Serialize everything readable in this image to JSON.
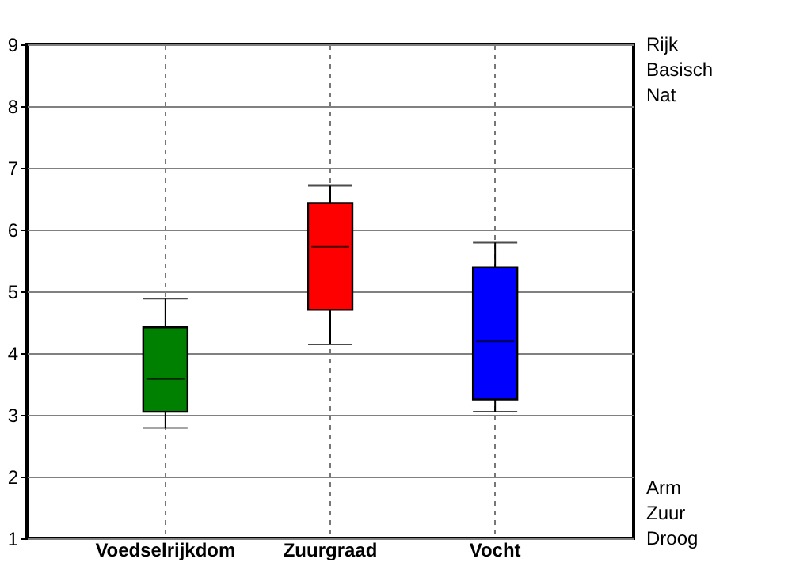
{
  "chart_data": {
    "type": "box",
    "categories": [
      "Voedselrijkdom",
      "Zuurgraad",
      "Vocht"
    ],
    "boxes": [
      {
        "low": 2.79,
        "q1": 3.05,
        "median": 3.58,
        "q3": 4.42,
        "high": 4.88
      },
      {
        "low": 4.14,
        "q1": 4.7,
        "median": 5.72,
        "q3": 6.43,
        "high": 6.71
      },
      {
        "low": 3.05,
        "q1": 3.25,
        "median": 4.19,
        "q3": 5.39,
        "high": 5.79
      }
    ],
    "colors": [
      "#008000",
      "#ff0000",
      "#0000ff"
    ],
    "ylim": [
      1,
      9
    ],
    "yticks": [
      1,
      2,
      3,
      4,
      5,
      6,
      7,
      8,
      9
    ],
    "grid": true,
    "annotations": [
      "Rijk",
      "Basisch",
      "Nat",
      "Arm",
      "Zuur",
      "Droog"
    ]
  }
}
